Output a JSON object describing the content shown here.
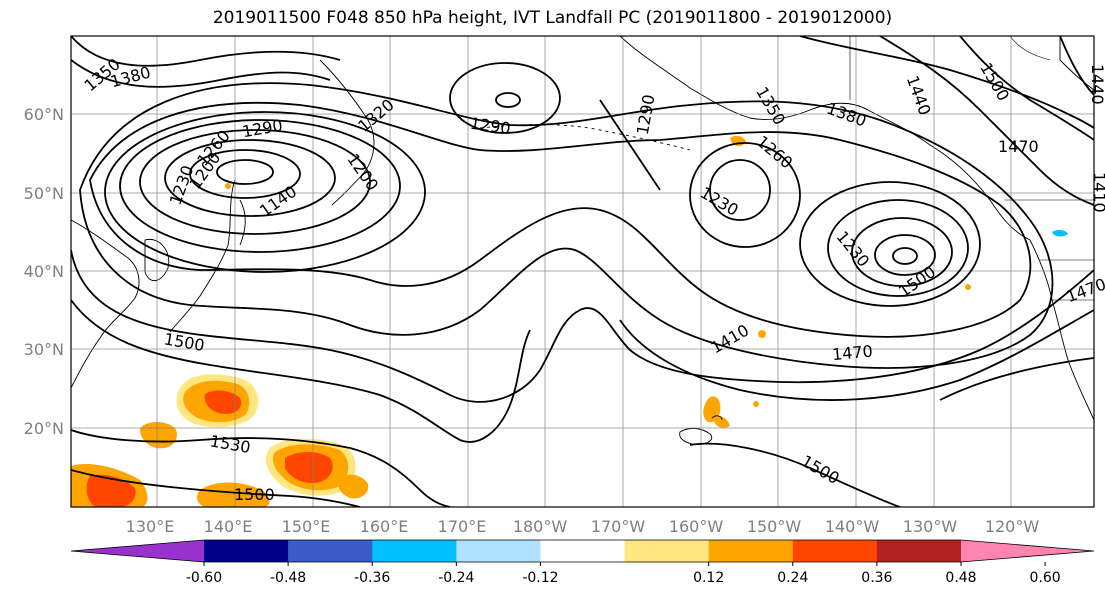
{
  "title": "2019011500 F048 850 hPa height, IVT Landfall PC (2019011800 - 2019012000)",
  "map": {
    "lat_labels": [
      "60°N",
      "50°N",
      "40°N",
      "30°N",
      "20°N"
    ],
    "lon_labels": [
      "130°E",
      "140°E",
      "150°E",
      "160°E",
      "170°E",
      "180°W",
      "170°W",
      "160°W",
      "150°W",
      "140°W",
      "130°W",
      "120°W"
    ],
    "contour_labels": [
      "1350",
      "1380",
      "1320",
      "1290",
      "1290",
      "1290",
      "1260",
      "1230",
      "1200",
      "1140",
      "1200",
      "1380",
      "1350",
      "1260",
      "1230",
      "1440",
      "1500",
      "1470",
      "1440",
      "1410",
      "1470",
      "1230",
      "1500",
      "1500",
      "1410",
      "1470",
      "1530",
      "1500",
      "1500"
    ],
    "contour_color": "#000000",
    "grid_color": "#808080"
  },
  "colorbar": {
    "tick_labels": [
      "-0.60",
      "-0.48",
      "-0.36",
      "-0.24",
      "-0.12",
      "0.12",
      "0.24",
      "0.36",
      "0.48",
      "0.60"
    ],
    "colors": [
      "#9932cc",
      "#00008b",
      "#3a5bc8",
      "#00bfff",
      "#b0e0ff",
      "#ffffff",
      "#ffe680",
      "#ffa500",
      "#ff4500",
      "#b22222",
      "#ff85b0"
    ]
  }
}
